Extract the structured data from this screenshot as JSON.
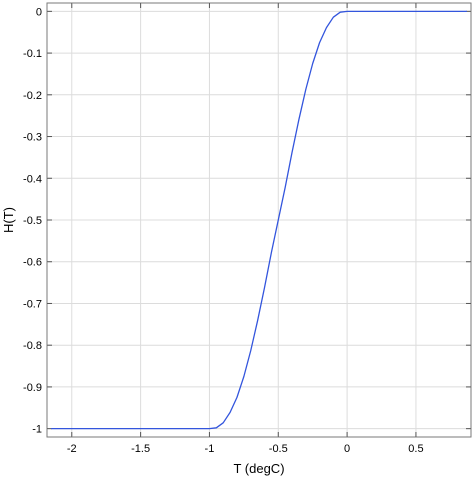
{
  "chart_data": {
    "type": "line",
    "xlabel": "T (degC)",
    "ylabel": "H(T)",
    "xlim": [
      -2.18,
      0.9
    ],
    "ylim": [
      -1.02,
      0.02
    ],
    "grid": true,
    "x_ticks": [
      -2,
      -1.5,
      -1,
      -0.5,
      0,
      0.5
    ],
    "y_ticks": [
      0,
      -0.1,
      -0.2,
      -0.3,
      -0.4,
      -0.5,
      -0.6,
      -0.7,
      -0.8,
      -0.9,
      -1
    ],
    "x_tick_labels": [
      "-2",
      "-1.5",
      "-1",
      "-0.5",
      "0",
      "0.5"
    ],
    "y_tick_labels": [
      "0",
      "-0.1",
      "-0.2",
      "-0.3",
      "-0.4",
      "-0.5",
      "-0.6",
      "-0.7",
      "-0.8",
      "-0.9",
      "-1"
    ],
    "series": [
      {
        "color": "#3355dd",
        "x": [
          -2.15,
          -1.5,
          -1.0,
          -0.95,
          -0.9,
          -0.85,
          -0.8,
          -0.75,
          -0.7,
          -0.65,
          -0.6,
          -0.55,
          -0.5,
          -0.45,
          -0.4,
          -0.35,
          -0.3,
          -0.25,
          -0.2,
          -0.15,
          -0.1,
          -0.05,
          0.0,
          0.5,
          0.87
        ],
        "y": [
          -1.0,
          -1.0,
          -1.0,
          -0.998,
          -0.986,
          -0.961,
          -0.925,
          -0.875,
          -0.813,
          -0.741,
          -0.662,
          -0.578,
          -0.5,
          -0.422,
          -0.338,
          -0.259,
          -0.187,
          -0.125,
          -0.075,
          -0.039,
          -0.014,
          -0.002,
          0.0,
          0.0,
          0.0
        ]
      }
    ]
  }
}
